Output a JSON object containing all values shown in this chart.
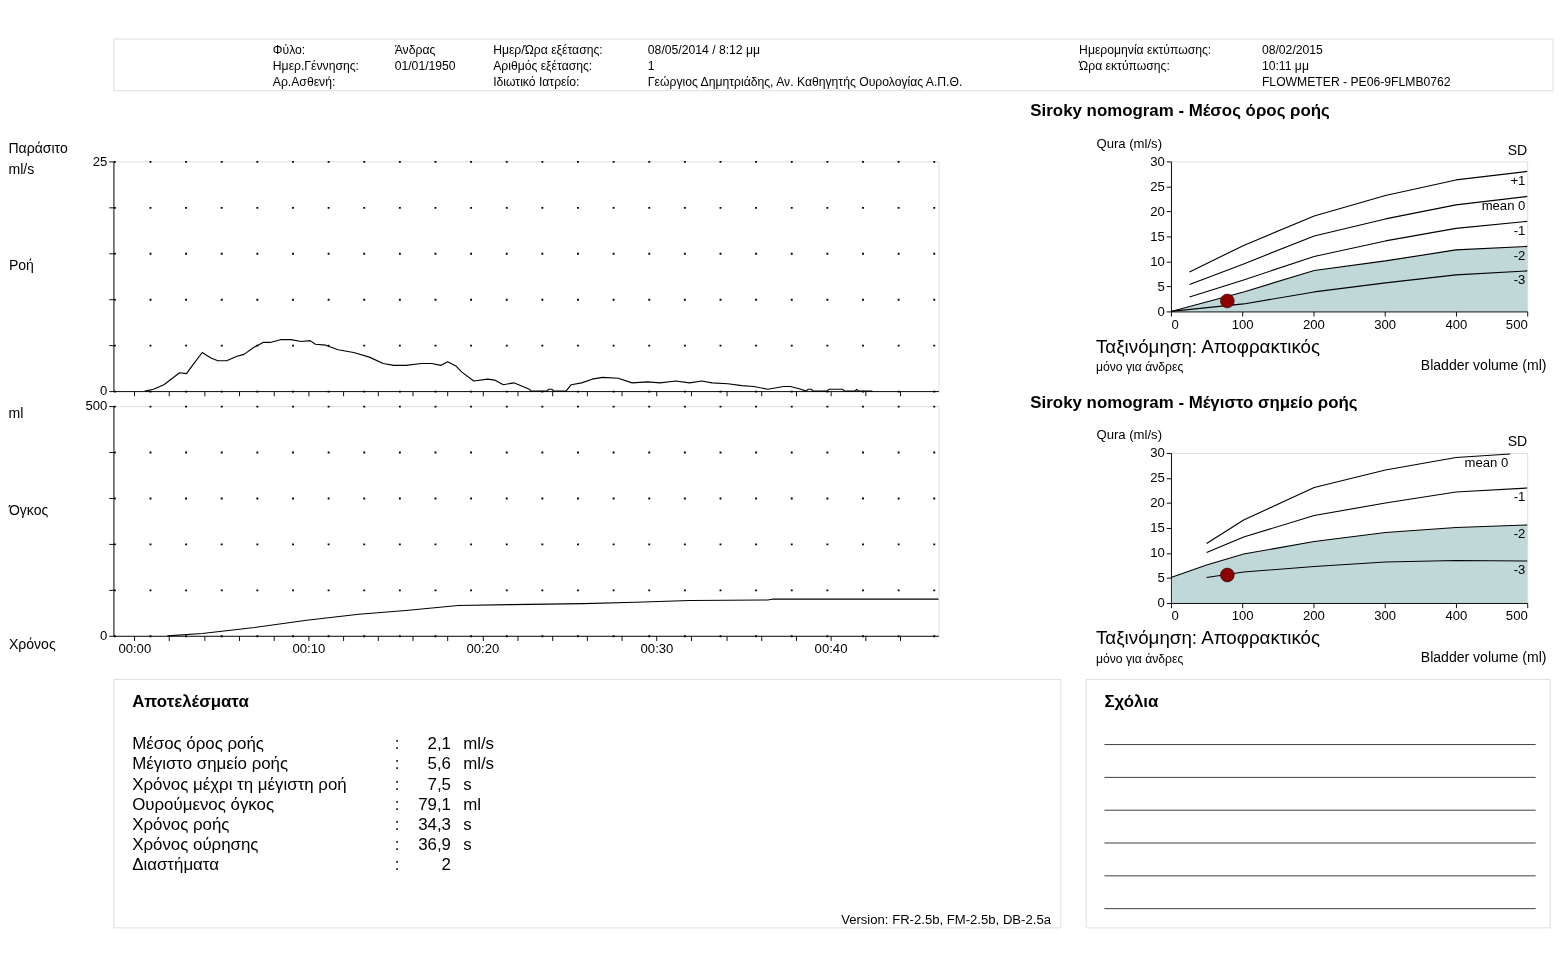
{
  "chart_data": [
    {
      "type": "other",
      "annotations": [
        "Φύλο:",
        "Άνδρας",
        "Ημερ.Γέννησης:",
        "01/01/1950",
        "Αρ.Ασθενή:",
        "Ημερ/Ώρα εξέτασης:",
        "08/05/2014 / 8:12 μμ",
        "Αριθμός εξέτασης:",
        "1",
        "Ιδιωτικό Ιατρείο:",
        "Γεώργιος Δημητριάδης, Αν. Καθηγητής Ουρολογίας Α.Π.Θ.",
        "Ημερομηνία εκτύπωσης:",
        "08/02/2015",
        "Ώρα εκτύπωσης:",
        "10:11 μμ",
        "FLOWMETER - PE06-9FLMB0762"
      ]
    },
    {
      "type": "line",
      "ylabel": "Ροή",
      "annotations": [
        "Παράσιτο",
        "ml/s"
      ],
      "tick_labels": "y",
      "grid": "y",
      "color": "#000000",
      "xlim": [
        -1.2,
        46.2
      ],
      "xticks": [
        {
          "value": 0,
          "label": null
        },
        {
          "value": 2,
          "label": null
        },
        {
          "value": 4,
          "label": null
        },
        {
          "value": 6,
          "label": null
        },
        {
          "value": 8,
          "label": null
        },
        {
          "value": 10,
          "label": null
        },
        {
          "value": 12,
          "label": null
        },
        {
          "value": 14,
          "label": null
        },
        {
          "value": 16,
          "label": null
        },
        {
          "value": 18,
          "label": null
        },
        {
          "value": 20,
          "label": null
        },
        {
          "value": 22,
          "label": null
        },
        {
          "value": 24,
          "label": null
        },
        {
          "value": 26,
          "label": null
        },
        {
          "value": 28,
          "label": null
        },
        {
          "value": 30,
          "label": null
        },
        {
          "value": 32,
          "label": null
        },
        {
          "value": 34,
          "label": null
        },
        {
          "value": 36,
          "label": null
        },
        {
          "value": 38,
          "label": null
        },
        {
          "value": 40,
          "label": null
        },
        {
          "value": 42,
          "label": null
        },
        {
          "value": 44,
          "label": null
        }
      ],
      "ylim": [
        0,
        25
      ],
      "yticks": [
        0,
        {
          "value": 5,
          "label": null
        },
        {
          "value": 10,
          "label": null
        },
        {
          "value": 15,
          "label": null
        },
        {
          "value": 20,
          "label": null
        },
        25
      ],
      "x": [
        0.6,
        1.1,
        1.7,
        2.6,
        3.0,
        3.3,
        3.9,
        4.4,
        4.8,
        5.3,
        5.9,
        6.3,
        6.9,
        7.4,
        7.8,
        8.4,
        9.0,
        9.6,
        10.1,
        10.4,
        11.0,
        11.7,
        12.6,
        13.5,
        14.3,
        14.9,
        15.6,
        16.5,
        17.1,
        17.6,
        18.0,
        18.5,
        18.8,
        19.5,
        20.3,
        20.7,
        21.2,
        21.8,
        22.7,
        22.8,
        23.7,
        23.8,
        24.0,
        24.1,
        24.8,
        25.1,
        25.7,
        26.3,
        26.9,
        27.8,
        28.6,
        29.5,
        30.2,
        31.1,
        31.9,
        32.6,
        33.2,
        34.1,
        34.9,
        35.6,
        36.4,
        37.3,
        37.7,
        38.3,
        38.6,
        38.7,
        38.9,
        39.0,
        39.8,
        39.9,
        40.7,
        40.8,
        41.4,
        41.5,
        41.6,
        42.4
      ],
      "values": [
        0,
        0.2,
        0.7,
        2.0,
        1.9,
        2.7,
        4.2,
        3.6,
        3.3,
        3.3,
        3.8,
        4.0,
        4.8,
        5.3,
        5.3,
        5.6,
        5.6,
        5.4,
        5.5,
        5.1,
        5.0,
        4.5,
        4.2,
        3.7,
        3.0,
        2.8,
        2.8,
        3.0,
        3.0,
        2.8,
        3.2,
        2.7,
        2.1,
        1.1,
        1.3,
        1.2,
        0.7,
        0.9,
        0.2,
        0,
        0,
        0.2,
        0.2,
        0,
        0,
        0.7,
        0.9,
        1.3,
        1.5,
        1.4,
        0.9,
        1.0,
        0.9,
        1.1,
        0.9,
        1.1,
        0.9,
        0.8,
        0.6,
        0.5,
        0.2,
        0.5,
        0.5,
        0.2,
        0,
        0.2,
        0.2,
        0,
        0,
        0.2,
        0.2,
        0,
        0,
        0.2,
        0,
        0
      ]
    },
    {
      "type": "line",
      "ylabel": "Όγκος",
      "xlabel": "Χρόνος",
      "annotations": [
        "ml"
      ],
      "grid": "y",
      "color": "#000000",
      "xlim": [
        -1.2,
        46.2
      ],
      "xticks": [
        {
          "value": 0,
          "label": "00:00"
        },
        {
          "value": 2,
          "label": null
        },
        {
          "value": 4,
          "label": null
        },
        {
          "value": 6,
          "label": null
        },
        {
          "value": 8,
          "label": null
        },
        {
          "value": 10,
          "label": "00:10"
        },
        {
          "value": 12,
          "label": null
        },
        {
          "value": 14,
          "label": null
        },
        {
          "value": 16,
          "label": null
        },
        {
          "value": 18,
          "label": null
        },
        {
          "value": 20,
          "label": "00:20"
        },
        {
          "value": 22,
          "label": null
        },
        {
          "value": 24,
          "label": null
        },
        {
          "value": 26,
          "label": null
        },
        {
          "value": 28,
          "label": null
        },
        {
          "value": 30,
          "label": "00:30"
        },
        {
          "value": 32,
          "label": null
        },
        {
          "value": 34,
          "label": null
        },
        {
          "value": 36,
          "label": null
        },
        {
          "value": 38,
          "label": null
        },
        {
          "value": 40,
          "label": "00:40"
        },
        {
          "value": 42,
          "label": null
        },
        {
          "value": 44,
          "label": null
        }
      ],
      "ylim": [
        0,
        500
      ],
      "yticks": [
        0,
        {
          "value": 100,
          "label": null
        },
        {
          "value": 200,
          "label": null
        },
        {
          "value": 300,
          "label": null
        },
        {
          "value": 400,
          "label": null
        },
        500
      ],
      "x": [
        1.9,
        3.9,
        6.9,
        9.9,
        12.9,
        15.6,
        18.6,
        21.6,
        25.8,
        28.8,
        31.9,
        36.4,
        36.7,
        46.2
      ],
      "values": [
        0,
        5,
        18,
        34,
        47,
        55,
        66,
        68,
        70,
        73,
        77,
        78,
        80,
        80
      ]
    },
    {
      "type": "line",
      "title": "Siroky nomogram - Μέσος όρος ροής",
      "ylabel": "Qura (ml/s)",
      "xlabel": "Bladder volume (ml)",
      "annotations": [
        "SD",
        "Ταξινόμηση: Αποφρακτικός",
        "μόνο για άνδρες"
      ],
      "xlim": [
        0,
        500
      ],
      "xticks": [
        0,
        100,
        200,
        300,
        400,
        500
      ],
      "ylim": [
        0,
        30
      ],
      "yticks": [
        0,
        5,
        10,
        15,
        20,
        25,
        30
      ],
      "series": [
        {
          "name": "-2",
          "type": "area",
          "color": "#2f7f7f",
          "x": [
            0,
            102,
            201,
            301,
            400,
            500
          ],
          "values": [
            0,
            3.9,
            8.2,
            10.1,
            12.3,
            13.0
          ]
        },
        {
          "name": "+1",
          "color": "#000000",
          "x": [
            26,
            102,
            201,
            301,
            400,
            500
          ],
          "values": [
            7.9,
            13.2,
            19.1,
            23.2,
            26.3,
            28.0
          ]
        },
        {
          "name": "mean 0",
          "color": "#000000",
          "x": [
            26,
            102,
            201,
            301,
            400,
            500
          ],
          "values": [
            5.4,
            9.5,
            15.1,
            18.5,
            21.3,
            23.0
          ]
        },
        {
          "name": "-1",
          "color": "#000000",
          "x": [
            26,
            102,
            201,
            301,
            400,
            500
          ],
          "values": [
            2.9,
            6.3,
            11.0,
            14.1,
            16.6,
            18.0
          ]
        },
        {
          "name": "-3",
          "color": "#000000",
          "x": [
            0,
            102,
            201,
            301,
            400,
            500
          ],
          "values": [
            0,
            1.5,
            3.9,
            5.7,
            7.3,
            8.1
          ]
        },
        {
          "type": "scatter",
          "color": "#8b0000",
          "x": [
            79.1
          ],
          "values": [
            2.1
          ]
        }
      ]
    },
    {
      "type": "line",
      "title": "Siroky nomogram - Μέγιστο σημείο ροής",
      "ylabel": "Qura (ml/s)",
      "xlabel": "Bladder volume (ml)",
      "annotations": [
        "SD",
        "Ταξινόμηση: Αποφρακτικός",
        "μόνο για άνδρες"
      ],
      "xlim": [
        0,
        500
      ],
      "xticks": [
        0,
        100,
        200,
        300,
        400,
        500
      ],
      "ylim": [
        0,
        30
      ],
      "yticks": [
        0,
        5,
        10,
        15,
        20,
        25,
        30
      ],
      "series": [
        {
          "name": "-2",
          "type": "area",
          "color": "#2f7f7f",
          "x": [
            0,
            50,
            102,
            201,
            301,
            400,
            500
          ],
          "values": [
            5.1,
            7.6,
            9.8,
            12.3,
            14.1,
            15.1,
            15.6
          ]
        },
        {
          "name": "mean 0",
          "color": "#000000",
          "x": [
            50,
            102,
            201,
            301,
            400,
            476
          ],
          "values": [
            11.9,
            16.6,
            23.1,
            26.6,
            29.1,
            29.8
          ]
        },
        {
          "name": "-1",
          "color": "#000000",
          "x": [
            50,
            102,
            201,
            301,
            400,
            500
          ],
          "values": [
            10.1,
            13.2,
            17.5,
            20.0,
            22.2,
            23.0
          ]
        },
        {
          "name": "-3",
          "color": "#000000",
          "x": [
            50,
            102,
            201,
            301,
            400,
            500
          ],
          "values": [
            5.1,
            6.2,
            7.3,
            8.2,
            8.5,
            8.4
          ]
        },
        {
          "type": "scatter",
          "color": "#8b0000",
          "x": [
            79.1
          ],
          "values": [
            5.6
          ]
        }
      ]
    },
    {
      "type": "other",
      "title": "Αποτελέσματα",
      "annotations": [
        "Μέσος όρος ροής",
        ":",
        "2,1",
        "ml/s",
        "Μέγιστο σημείο ροής",
        ":",
        "5,6",
        "ml/s",
        "Χρόνος μέχρι τη μέγιστη ροή",
        ":",
        "7,5",
        "s",
        "Ουρούμενος όγκος",
        ":",
        "79,1",
        "ml",
        "Χρόνος ροής",
        ":",
        "34,3",
        "s",
        "Χρόνος ούρησης",
        ":",
        "36,9",
        "s",
        "Διαστήματα",
        ":",
        "2",
        "Version: FR-2.5b, FM-2.5b, DB-2.5a"
      ]
    },
    {
      "type": "other",
      "title": "Σχόλια"
    }
  ]
}
